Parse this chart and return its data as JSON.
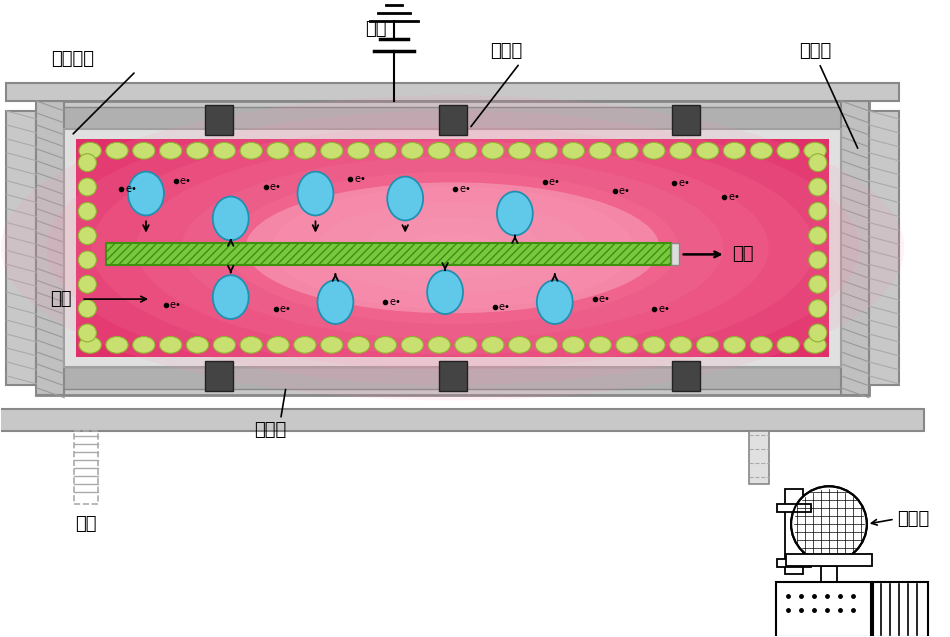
{
  "bg_color": "#ffffff",
  "green_ball_color": "#c8e070",
  "green_ball_outline": "#90b030",
  "ion_color": "#60c8e8",
  "ion_outline": "#2090b0",
  "electrode_green": "#78c840",
  "electrode_outline": "#409010",
  "frame_gray": "#aaaaaa",
  "frame_dark": "#888888",
  "frame_light": "#cccccc",
  "label_zhongxing": "中性粒子",
  "label_dianyuan": "电源",
  "label_dianjiuban_top": "电极板",
  "label_shielding": "屏蔽层",
  "label_gongji": "工件",
  "label_lizi": "离子",
  "label_dianjiuban_bot": "电极板",
  "label_jingqi": "进气",
  "label_zhenkongbeng": "真空泵"
}
